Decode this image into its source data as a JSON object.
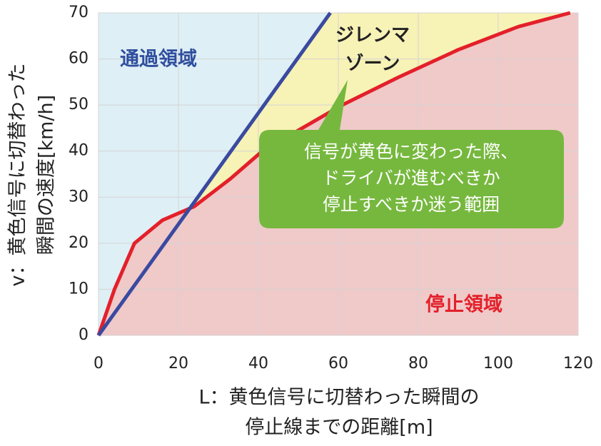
{
  "chart_data": {
    "type": "line",
    "xlabel": [
      "L：黄色信号に切替わった瞬間の",
      "停止線までの距離[m]"
    ],
    "ylabel": [
      "v：黄色信号に切替わった",
      "瞬間の速度[km/h]"
    ],
    "xlim": [
      0,
      120
    ],
    "ylim": [
      0,
      70
    ],
    "xticks": [
      0,
      20,
      40,
      60,
      80,
      100,
      120
    ],
    "yticks": [
      0,
      10,
      20,
      30,
      40,
      50,
      60,
      70
    ],
    "grid": true,
    "series": [
      {
        "color": "#3a4aa0",
        "x": [
          0,
          58
        ],
        "values": [
          0,
          70
        ]
      },
      {
        "color": "#e3202a",
        "x": [
          0,
          2,
          4,
          9,
          16,
          24,
          33,
          41,
          51,
          61,
          75,
          90,
          105,
          118
        ],
        "values": [
          0,
          5,
          10,
          20,
          25,
          28,
          34,
          40,
          45,
          50,
          56,
          62,
          67,
          70
        ]
      }
    ],
    "region_labels": {
      "pass": "通過領域",
      "stop": "停止領域",
      "dilemma": [
        "ジレンマ",
        "ゾーン"
      ]
    },
    "callout": [
      "信号が黄色に変わった際、",
      "ドライバが進むべきか",
      "停止すべきか迷う範囲"
    ]
  }
}
